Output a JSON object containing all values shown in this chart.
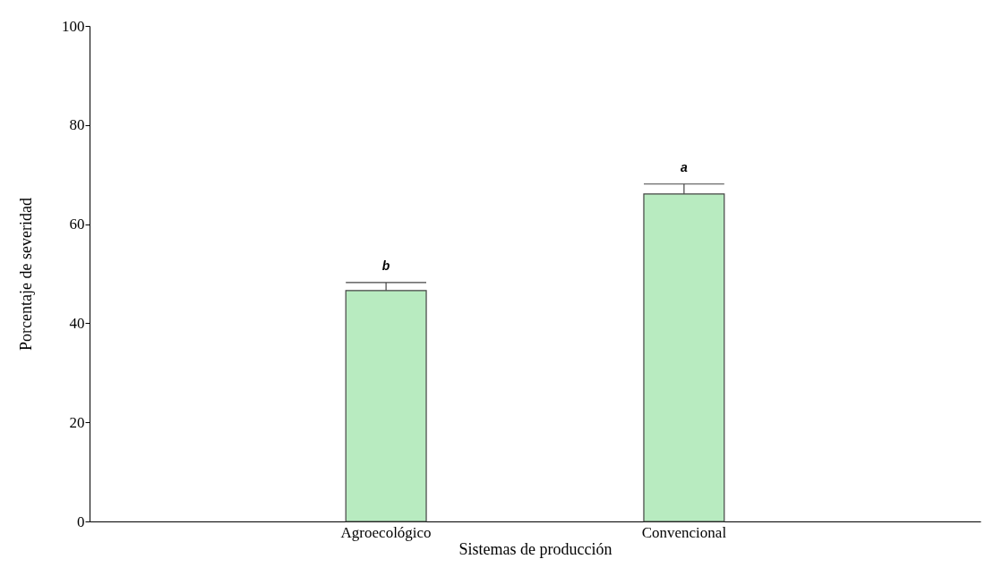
{
  "chart_data": {
    "type": "bar",
    "xlabel": "Sistemas de producción",
    "ylabel": "Porcentaje de severidad",
    "categories": [
      "Agroecológico",
      "Convencional"
    ],
    "values": [
      46.6,
      66.1
    ],
    "errors": [
      [
        46.6,
        48.2
      ],
      [
        66.1,
        68.1
      ]
    ],
    "color": "#b8ebc0",
    "ylim": [
      0,
      100
    ],
    "yticks": [
      0,
      20,
      40,
      60,
      80,
      100
    ],
    "grid": false,
    "annotations": [
      {
        "text": "b",
        "x": "Agroecológico",
        "y": 48.2
      },
      {
        "text": "a",
        "x": "Convencional",
        "y": 68.1
      }
    ]
  }
}
